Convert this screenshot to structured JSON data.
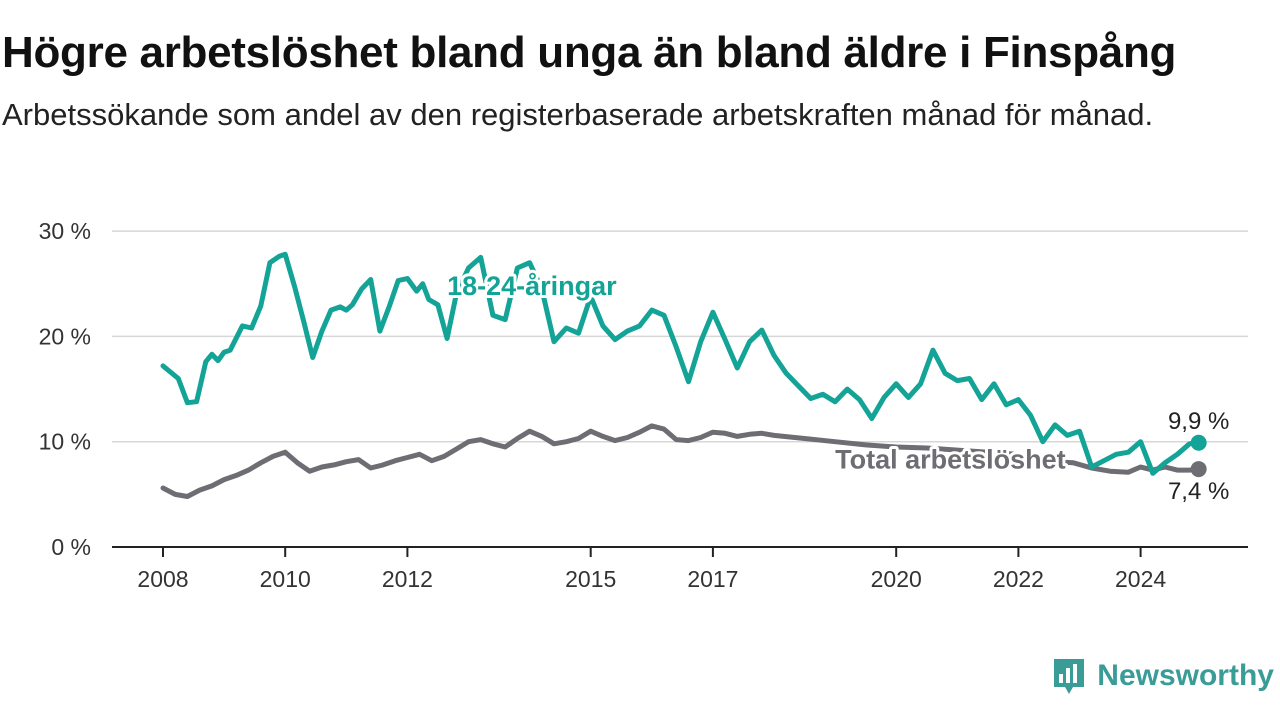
{
  "title": "Högre arbetslöshet bland unga än bland äldre i Finspång",
  "subtitle": "Arbetssökande som andel av den registerbaserade arbetskraften månad för månad.",
  "brand": {
    "name": "Newsworthy",
    "icon": "newsworthy-chart-icon",
    "color": "#3a9c97"
  },
  "chart_data": {
    "type": "line",
    "x_unit": "year",
    "xlim": [
      2008,
      2025
    ],
    "ylim": [
      0,
      30
    ],
    "grid": true,
    "xticks": [
      {
        "value": 2008,
        "label": "2008"
      },
      {
        "value": 2010,
        "label": "2010"
      },
      {
        "value": 2012,
        "label": "2012"
      },
      {
        "value": 2015,
        "label": "2015"
      },
      {
        "value": 2017,
        "label": "2017"
      },
      {
        "value": 2020,
        "label": "2020"
      },
      {
        "value": 2022,
        "label": "2022"
      },
      {
        "value": 2024,
        "label": "2024"
      }
    ],
    "yticks": [
      {
        "value": 0,
        "label": "0 %"
      },
      {
        "value": 10,
        "label": "10 %"
      },
      {
        "value": 20,
        "label": "20 %"
      },
      {
        "value": 30,
        "label": "30 %"
      }
    ],
    "series": [
      {
        "name": "18-24-åringar",
        "color": "#13a397",
        "end_label": "9,9 %",
        "x": [
          2008.0,
          2008.25,
          2008.4,
          2008.55,
          2008.7,
          2008.8,
          2008.9,
          2009.0,
          2009.1,
          2009.3,
          2009.45,
          2009.6,
          2009.75,
          2009.9,
          2010.0,
          2010.15,
          2010.3,
          2010.45,
          2010.6,
          2010.75,
          2010.9,
          2011.0,
          2011.1,
          2011.25,
          2011.4,
          2011.55,
          2011.7,
          2011.85,
          2012.0,
          2012.15,
          2012.25,
          2012.35,
          2012.5,
          2012.65,
          2012.8,
          2013.0,
          2013.2,
          2013.4,
          2013.6,
          2013.8,
          2014.0,
          2014.2,
          2014.4,
          2014.6,
          2014.8,
          2015.0,
          2015.2,
          2015.4,
          2015.6,
          2015.8,
          2016.0,
          2016.2,
          2016.4,
          2016.6,
          2016.8,
          2017.0,
          2017.2,
          2017.4,
          2017.6,
          2017.8,
          2018.0,
          2018.2,
          2018.4,
          2018.6,
          2018.8,
          2019.0,
          2019.2,
          2019.4,
          2019.6,
          2019.8,
          2020.0,
          2020.2,
          2020.4,
          2020.6,
          2020.8,
          2021.0,
          2021.2,
          2021.4,
          2021.6,
          2021.8,
          2022.0,
          2022.2,
          2022.4,
          2022.6,
          2022.8,
          2023.0,
          2023.2,
          2023.4,
          2023.6,
          2023.8,
          2024.0,
          2024.2,
          2024.4,
          2024.6,
          2024.8,
          2024.95
        ],
        "y": [
          17.2,
          16.0,
          13.7,
          13.8,
          17.6,
          18.3,
          17.7,
          18.5,
          18.7,
          21.0,
          20.8,
          22.9,
          27.0,
          27.6,
          27.8,
          24.8,
          21.5,
          18.0,
          20.5,
          22.5,
          22.8,
          22.5,
          23.0,
          24.5,
          25.4,
          20.5,
          22.8,
          25.3,
          25.5,
          24.3,
          25.0,
          23.5,
          23.0,
          19.8,
          24.0,
          26.5,
          27.5,
          22.0,
          21.6,
          26.5,
          27.0,
          24.5,
          19.5,
          20.8,
          20.3,
          23.8,
          21.0,
          19.7,
          20.5,
          21.0,
          22.5,
          22.0,
          19.0,
          15.7,
          19.5,
          22.3,
          19.7,
          17.0,
          19.5,
          20.6,
          18.2,
          16.5,
          15.3,
          14.1,
          14.5,
          13.8,
          15.0,
          14.0,
          12.2,
          14.2,
          15.5,
          14.2,
          15.5,
          18.7,
          16.5,
          15.8,
          16.0,
          14.0,
          15.5,
          13.5,
          14.0,
          12.5,
          10.0,
          11.6,
          10.6,
          11.0,
          7.6,
          8.2,
          8.8,
          9.0,
          10.0,
          7.0,
          8.0,
          8.8,
          9.8,
          9.9
        ]
      },
      {
        "name": "Total arbetslöshet",
        "color": "#6e6d73",
        "end_label": "7,4 %",
        "x": [
          2008.0,
          2008.2,
          2008.4,
          2008.6,
          2008.8,
          2009.0,
          2009.2,
          2009.4,
          2009.6,
          2009.8,
          2010.0,
          2010.2,
          2010.4,
          2010.6,
          2010.8,
          2011.0,
          2011.2,
          2011.4,
          2011.6,
          2011.8,
          2012.0,
          2012.2,
          2012.4,
          2012.6,
          2012.8,
          2013.0,
          2013.2,
          2013.4,
          2013.6,
          2013.8,
          2014.0,
          2014.2,
          2014.4,
          2014.6,
          2014.8,
          2015.0,
          2015.2,
          2015.4,
          2015.6,
          2015.8,
          2016.0,
          2016.2,
          2016.4,
          2016.6,
          2016.8,
          2017.0,
          2017.2,
          2017.4,
          2017.6,
          2017.8,
          2018.0,
          2018.5,
          2019.0,
          2019.5,
          2020.0,
          2020.5,
          2021.0,
          2021.5,
          2022.0,
          2022.3,
          2022.6,
          2022.9,
          2023.2,
          2023.5,
          2023.8,
          2024.0,
          2024.2,
          2024.4,
          2024.6,
          2024.8,
          2024.95
        ],
        "y": [
          5.6,
          5.0,
          4.8,
          5.4,
          5.8,
          6.4,
          6.8,
          7.3,
          8.0,
          8.6,
          9.0,
          8.0,
          7.2,
          7.6,
          7.8,
          8.1,
          8.3,
          7.5,
          7.8,
          8.2,
          8.5,
          8.8,
          8.2,
          8.6,
          9.3,
          10.0,
          10.2,
          9.8,
          9.5,
          10.3,
          11.0,
          10.5,
          9.8,
          10.0,
          10.3,
          11.0,
          10.5,
          10.1,
          10.4,
          10.9,
          11.5,
          11.2,
          10.2,
          10.1,
          10.4,
          10.9,
          10.8,
          10.5,
          10.7,
          10.8,
          10.6,
          10.3,
          10.0,
          9.7,
          9.5,
          9.4,
          9.2,
          9.0,
          8.8,
          8.3,
          8.1,
          8.0,
          7.5,
          7.2,
          7.1,
          7.6,
          7.3,
          7.6,
          7.3,
          7.3,
          7.4
        ]
      }
    ]
  }
}
